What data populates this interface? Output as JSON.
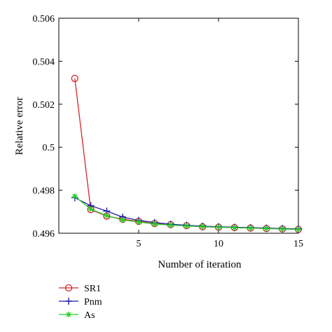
{
  "chart_data": {
    "type": "line",
    "xlabel": "Number of iteration",
    "ylabel": "Relative error",
    "xlim": [
      0,
      15
    ],
    "ylim": [
      0.496,
      0.506
    ],
    "xticks": [
      5,
      10,
      15
    ],
    "xtick_labels": [
      "5",
      "10",
      "15"
    ],
    "yticks": [
      0.496,
      0.498,
      0.5,
      0.502,
      0.504,
      0.506
    ],
    "ytick_labels": [
      "0.496",
      "0.498",
      "0.5",
      "0.502",
      "0.504",
      "0.506"
    ],
    "grid": false,
    "legend_position": "below",
    "x": [
      1,
      2,
      3,
      4,
      5,
      6,
      7,
      8,
      9,
      10,
      11,
      12,
      13,
      14,
      15
    ],
    "series": [
      {
        "name": "SR1",
        "color": "#d62728",
        "marker": "circle",
        "values": [
          0.5032,
          0.4971,
          0.4968,
          0.49665,
          0.49655,
          0.49645,
          0.4964,
          0.49635,
          0.4963,
          0.49628,
          0.49626,
          0.49624,
          0.49622,
          0.4962,
          0.49618
        ]
      },
      {
        "name": "Pnm",
        "color": "#1f1fa8",
        "marker": "plus",
        "values": [
          0.49765,
          0.49728,
          0.49703,
          0.49675,
          0.4966,
          0.4965,
          0.49642,
          0.49637,
          0.49633,
          0.4963,
          0.49628,
          0.49626,
          0.49624,
          0.49622,
          0.4962
        ]
      },
      {
        "name": "As",
        "color": "#22cc22",
        "marker": "asterisk",
        "values": [
          0.49772,
          0.49712,
          0.49682,
          0.49662,
          0.49652,
          0.49643,
          0.49638,
          0.49634,
          0.49631,
          0.49628,
          0.49626,
          0.49624,
          0.49622,
          0.4962,
          0.49618
        ]
      }
    ]
  }
}
